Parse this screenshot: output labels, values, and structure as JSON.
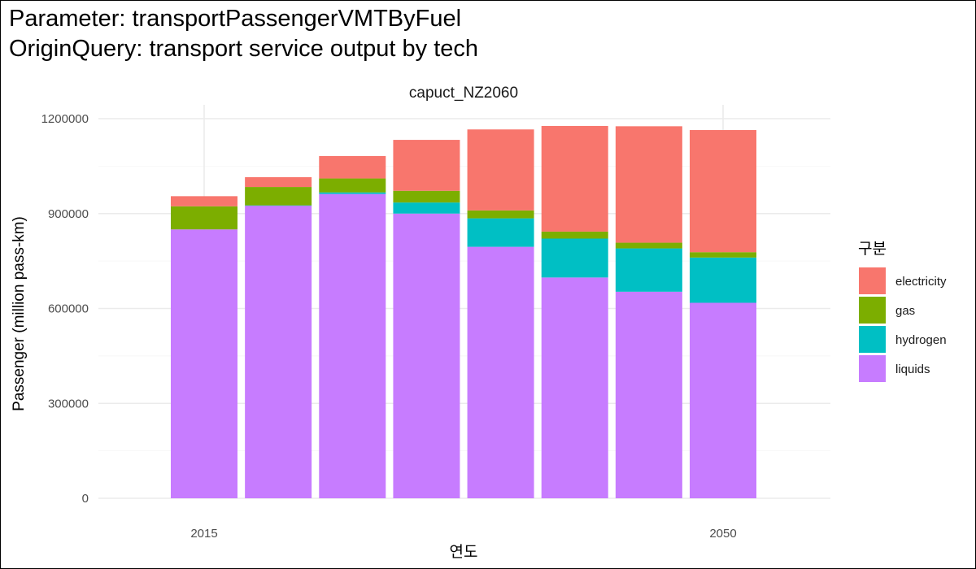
{
  "titles": {
    "line1": "Parameter: transportPassengerVMTByFuel",
    "line2": "OriginQuery: transport service output by tech"
  },
  "chart_data": {
    "type": "bar",
    "stacked": true,
    "facet_label": "capuct_NZ2060",
    "categories": [
      2015,
      2020,
      2025,
      2030,
      2035,
      2040,
      2045,
      2050
    ],
    "x_tick_labels": [
      {
        "value": 2015,
        "label": "2015"
      },
      {
        "value": 2050,
        "label": "2050"
      }
    ],
    "xlim": [
      2010,
      2055
    ],
    "xlabel": "연도",
    "ylabel": "Passenger (million pass-km)",
    "ylim": [
      0,
      1200000
    ],
    "y_ticks": [
      0,
      300000,
      600000,
      900000,
      1200000
    ],
    "y_tick_labels": [
      "0",
      "300000",
      "600000",
      "900000",
      "1200000"
    ],
    "grid": true,
    "legend": {
      "title": "구분",
      "position": "right"
    },
    "series": [
      {
        "name": "liquids",
        "color": "#C77CFF",
        "values": [
          850000,
          925000,
          962000,
          900000,
          795000,
          698000,
          653000,
          618000
        ]
      },
      {
        "name": "hydrogen",
        "color": "#00BFC4",
        "values": [
          0,
          1000,
          5000,
          35000,
          90000,
          123000,
          137000,
          143000
        ]
      },
      {
        "name": "gas",
        "color": "#7CAE00",
        "values": [
          73000,
          58000,
          44000,
          37000,
          25000,
          22000,
          18000,
          17000
        ]
      },
      {
        "name": "electricity",
        "color": "#F8766D",
        "values": [
          32000,
          31000,
          71000,
          161000,
          256000,
          334000,
          368000,
          386000
        ]
      }
    ],
    "legend_order": [
      "electricity",
      "gas",
      "hydrogen",
      "liquids"
    ]
  }
}
